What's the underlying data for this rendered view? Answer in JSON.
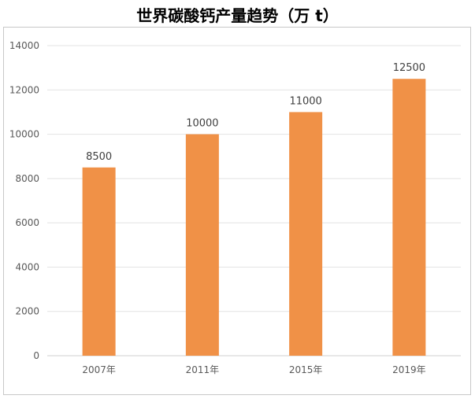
{
  "chart_data": {
    "type": "bar",
    "title": "世界碳酸钙产量趋势（万 t）",
    "categories": [
      "2007年",
      "2011年",
      "2015年",
      "2019年"
    ],
    "values": [
      8500,
      10000,
      11000,
      12500
    ],
    "data_labels": [
      "8500",
      "10000",
      "11000",
      "12500"
    ],
    "yticks": [
      "0",
      "2000",
      "4000",
      "6000",
      "8000",
      "10000",
      "12000",
      "14000"
    ],
    "ylim": [
      0,
      14000
    ],
    "xlabel": "",
    "ylabel": "",
    "grid": true,
    "bar_color": "#F09147"
  }
}
